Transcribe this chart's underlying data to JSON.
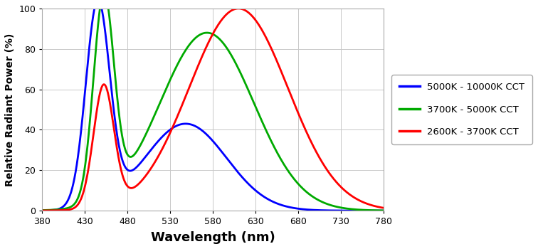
{
  "title": "",
  "xlabel": "Wavelength (nm)",
  "ylabel": "Relative Radiant Power (%)",
  "xlim": [
    380,
    780
  ],
  "ylim": [
    0,
    100
  ],
  "xticks": [
    380,
    430,
    480,
    530,
    580,
    630,
    680,
    730,
    780
  ],
  "yticks": [
    0,
    20,
    40,
    60,
    80,
    100
  ],
  "blue_peak_mu": 445,
  "blue_peak_sigma": 14,
  "blue_peak_amp": 100,
  "blue_phosphor_mu": 548,
  "blue_phosphor_sigma": 48,
  "blue_phosphor_amp": 43,
  "green_peak_mu": 452,
  "green_peak_sigma": 12,
  "green_peak_amp": 100,
  "green_phosphor_mu": 573,
  "green_phosphor_sigma": 55,
  "green_phosphor_amp": 88,
  "red_peak_mu": 452,
  "red_peak_sigma": 12,
  "red_peak_amp": 60,
  "red_phosphor_mu": 610,
  "red_phosphor_sigma": 58,
  "red_phosphor_amp": 100,
  "colors": {
    "blue": "#0000FF",
    "green": "#00AA00",
    "red": "#FF0000"
  },
  "legend": [
    {
      "label": "5000K - 10000K CCT",
      "color": "#0000FF"
    },
    {
      "label": "3700K - 5000K CCT",
      "color": "#00AA00"
    },
    {
      "label": "2600K - 3700K CCT",
      "color": "#FF0000"
    }
  ],
  "background_color": "#ffffff",
  "grid_color": "#c8c8c8",
  "linewidth": 2.0,
  "figsize": [
    7.56,
    3.5
  ],
  "dpi": 100
}
